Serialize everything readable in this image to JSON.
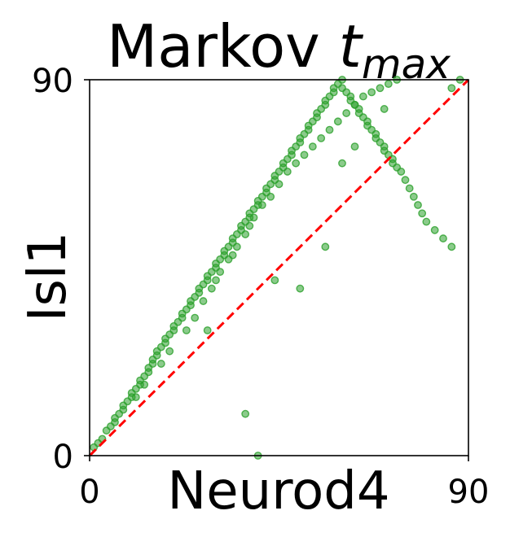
{
  "chart_data": {
    "type": "scatter",
    "title": "Markov ",
    "title_math_base": "t",
    "title_math_subscript": "max",
    "xlabel": "Neurod4",
    "ylabel": "Isl1",
    "xlim": [
      0,
      90
    ],
    "ylim": [
      0,
      90
    ],
    "x_ticks": [
      "0",
      "90"
    ],
    "y_ticks": [
      "0",
      "90"
    ],
    "grid": false,
    "legend": "none",
    "point_color": "#2ca02c",
    "reference_line": {
      "x": [
        0,
        90
      ],
      "y": [
        0,
        90
      ],
      "color": "#ff0000",
      "style": "dashed"
    },
    "series": [
      {
        "x": [
          1,
          2,
          3,
          4,
          5,
          6,
          6,
          7,
          8,
          8,
          9,
          10,
          10,
          11,
          12,
          12,
          13,
          14,
          14,
          15,
          15,
          16,
          16,
          17,
          18,
          18,
          19,
          20,
          20,
          21,
          22,
          22,
          23,
          24,
          24,
          25,
          26,
          26,
          27,
          28,
          28,
          29,
          30,
          30,
          31,
          32,
          32,
          33,
          34,
          34,
          35,
          36,
          36,
          37,
          38,
          38,
          39,
          40,
          40,
          41,
          42,
          42,
          43,
          44,
          44,
          45,
          46,
          46,
          47,
          48,
          48,
          49,
          50,
          50,
          51,
          52,
          52,
          53,
          54,
          54,
          55,
          56,
          56,
          57,
          58,
          58,
          59,
          60,
          60,
          61,
          62,
          62,
          63,
          64,
          64,
          65,
          66,
          66,
          67,
          68,
          68,
          69,
          70,
          70,
          71,
          72,
          72,
          73,
          74,
          75,
          76,
          77,
          78,
          79,
          80,
          82,
          84,
          86,
          11,
          13,
          17,
          19,
          23,
          25,
          27,
          29,
          31,
          33,
          35,
          37,
          39,
          41,
          43,
          45,
          47,
          49,
          51,
          53,
          55,
          57,
          59,
          61,
          63,
          65,
          67,
          69,
          71,
          73,
          38,
          34,
          30,
          60,
          63,
          70,
          88,
          86,
          56,
          44,
          28,
          37,
          40,
          50
        ],
        "y": [
          2,
          3,
          4,
          6,
          7,
          8,
          9,
          10,
          11,
          12,
          13,
          14,
          15,
          16,
          17,
          18,
          19,
          20,
          21,
          22,
          23,
          24,
          25,
          26,
          27,
          28,
          29,
          30,
          31,
          32,
          33,
          34,
          35,
          36,
          37,
          38,
          39,
          40,
          41,
          42,
          43,
          44,
          45,
          46,
          47,
          48,
          49,
          50,
          51,
          52,
          53,
          54,
          55,
          56,
          57,
          58,
          59,
          60,
          61,
          62,
          63,
          64,
          65,
          66,
          67,
          68,
          69,
          70,
          71,
          72,
          73,
          74,
          75,
          76,
          77,
          78,
          79,
          80,
          81,
          82,
          83,
          84,
          85,
          86,
          87,
          88,
          89,
          90,
          88,
          87,
          86,
          85,
          84,
          83,
          82,
          81,
          80,
          79,
          78,
          77,
          76,
          75,
          74,
          73,
          72,
          71,
          70,
          69,
          68,
          66,
          64,
          62,
          60,
          58,
          56,
          54,
          52,
          50,
          14,
          17,
          22,
          25,
          30,
          33,
          37,
          40,
          44,
          47,
          50,
          53,
          57,
          60,
          62,
          65,
          68,
          70,
          72,
          74,
          76,
          78,
          80,
          82,
          84,
          86,
          87,
          88,
          89,
          90,
          55,
          48,
          42,
          70,
          74,
          83,
          90,
          88,
          50,
          42,
          30,
          10,
          0,
          40
        ]
      }
    ]
  }
}
